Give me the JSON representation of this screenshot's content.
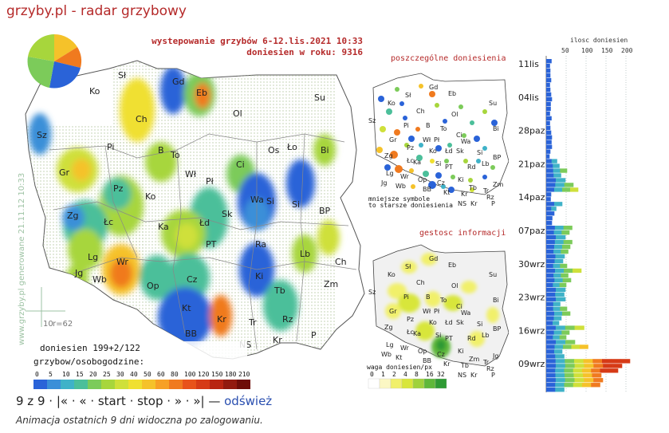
{
  "page": {
    "title": "grzyby.pl - radar grzybowy"
  },
  "main_map": {
    "header_line1": "wystepowanie grzybów 6-12.lis.2021 10:33",
    "header_line2": "doniesien w roku: 9316",
    "side_label": "www.grzyby.pl generowane 21.11.12 10:33",
    "scale_mark": "10",
    "r_label": "r=62",
    "reports_label": "doniesien 199+2/122",
    "legend_title": "grzybow/osobogodzine:",
    "legend_values": [
      "0",
      "5",
      "10",
      "15",
      "20",
      "25",
      "30",
      "40",
      "50",
      "60",
      "80",
      "100",
      "120",
      "150",
      "180",
      "210"
    ],
    "legend_colors": [
      "#2a63d8",
      "#3b8fd8",
      "#3fb2c8",
      "#4cbf9a",
      "#7ccb5a",
      "#a7d63c",
      "#cfe03a",
      "#f0e030",
      "#f5c22a",
      "#f7a025",
      "#f07a1f",
      "#e8521a",
      "#d63a16",
      "#b82512",
      "#921a0f",
      "#6e0d08"
    ],
    "cities": [
      "Sł",
      "Gd",
      "Eb",
      "Su",
      "Ko",
      "Ch",
      "Ol",
      "Sz",
      "Pi",
      "B",
      "To",
      "Os",
      "Ło",
      "Bi",
      "Gr",
      "Wł",
      "Ci",
      "Pł",
      "Pz",
      "Ko",
      "Wa",
      "Si",
      "Zg",
      "Łc",
      "Ka",
      "Si",
      "Łd",
      "Sk",
      "BP",
      "PT",
      "Lg",
      "Wr",
      "Ra",
      "Lb",
      "Ch",
      "Jg",
      "Wb",
      "Op",
      "Cz",
      "Ki",
      "Zm",
      "Kt",
      "Kr",
      "Tb",
      "Rz",
      "BB",
      "Tr",
      "NS",
      "Kr",
      "P"
    ]
  },
  "mini_map_reports": {
    "title": "poszczególne doniesienia",
    "note_line1": "mniejsze symbole",
    "note_line2": "to starsze doniesienia",
    "cities": [
      "Sł",
      "Gd",
      "Eb",
      "Ko",
      "Ch",
      "Ol",
      "Su",
      "Sz",
      "Pi",
      "B",
      "To",
      "Wł",
      "Ci",
      "Bi",
      "Gr",
      "Pł",
      "Pz",
      "Wa",
      "Si",
      "Zg",
      "Łc",
      "Ko",
      "Ka",
      "Si",
      "Łd",
      "Sk",
      "PT",
      "Rd",
      "Lb",
      "BP",
      "Lg",
      "Wr",
      "Op",
      "Cz",
      "Ki",
      "Tb",
      "Zm",
      "Jg",
      "Wb",
      "Kt",
      "Kr",
      "Tr",
      "Rz",
      "BB",
      "NS",
      "Kr",
      "P"
    ]
  },
  "mini_map_density": {
    "title": "gestosc informacji",
    "legend_title": "waga doniesien/px",
    "legend_values": [
      "0",
      "1",
      "2",
      "4",
      "8",
      "16",
      "32"
    ],
    "legend_colors": [
      "#ffffff",
      "#fbf7c4",
      "#f1f06a",
      "#d8e63a",
      "#9fd23c",
      "#5fb83a",
      "#2e9a34"
    ],
    "cities": [
      "Sł",
      "Gd",
      "Eb",
      "Ko",
      "Ch",
      "Ol",
      "Su",
      "Sz",
      "Pi",
      "B",
      "To",
      "Wł",
      "Ci",
      "Bi",
      "Gr",
      "Pł",
      "Pz",
      "Wa",
      "Si",
      "Zg",
      "Łc",
      "Ko",
      "Ka",
      "Si",
      "Łd",
      "Sk",
      "PT",
      "Rd",
      "Lb",
      "BP",
      "Lg",
      "Wr",
      "Op",
      "Cz",
      "Ki",
      "Zm",
      "Jg",
      "Wb",
      "Kt",
      "Kr",
      "Tb",
      "Tr",
      "Rz",
      "BB",
      "NS",
      "Kr",
      "P"
    ]
  },
  "chart_data": {
    "type": "bar",
    "title": "ilosc doniesien",
    "x_ticks": [
      50,
      100,
      150,
      200
    ],
    "xlim": [
      0,
      225
    ],
    "orientation": "horizontal",
    "date_labels": [
      "11lis",
      "04lis",
      "28paz",
      "21paz",
      "14paz",
      "07paz",
      "30wrz",
      "23wrz",
      "16wrz",
      "09wrz"
    ],
    "rows_per_week": 7,
    "values": [
      13,
      9,
      10,
      10,
      12,
      9,
      10,
      12,
      14,
      11,
      11,
      9,
      13,
      9,
      10,
      12,
      14,
      13,
      14,
      10,
      8,
      27,
      33,
      52,
      37,
      48,
      68,
      80,
      12,
      11,
      40,
      25,
      20,
      15,
      14,
      65,
      58,
      48,
      65,
      60,
      55,
      46,
      42,
      52,
      88,
      55,
      62,
      50,
      48,
      45,
      48,
      35,
      52,
      60,
      38,
      32,
      95,
      58,
      50,
      72,
      105,
      40,
      45,
      210,
      190,
      180,
      138,
      142,
      135,
      45
    ],
    "colors_low_to_high": [
      "#2a63d8",
      "#3fb2c8",
      "#7ccb5a",
      "#cfe03a",
      "#f5c22a",
      "#f07a1f",
      "#d63a16"
    ]
  },
  "navigation": {
    "position": "9 z 9",
    "first": "|«",
    "prev": "«",
    "start": "start",
    "stop": "stop",
    "next": "»",
    "last": "»|",
    "dash": "—",
    "refresh": "odśwież"
  },
  "footnote": "Animacja ostatnich 9 dni widoczna po zalogowaniu."
}
